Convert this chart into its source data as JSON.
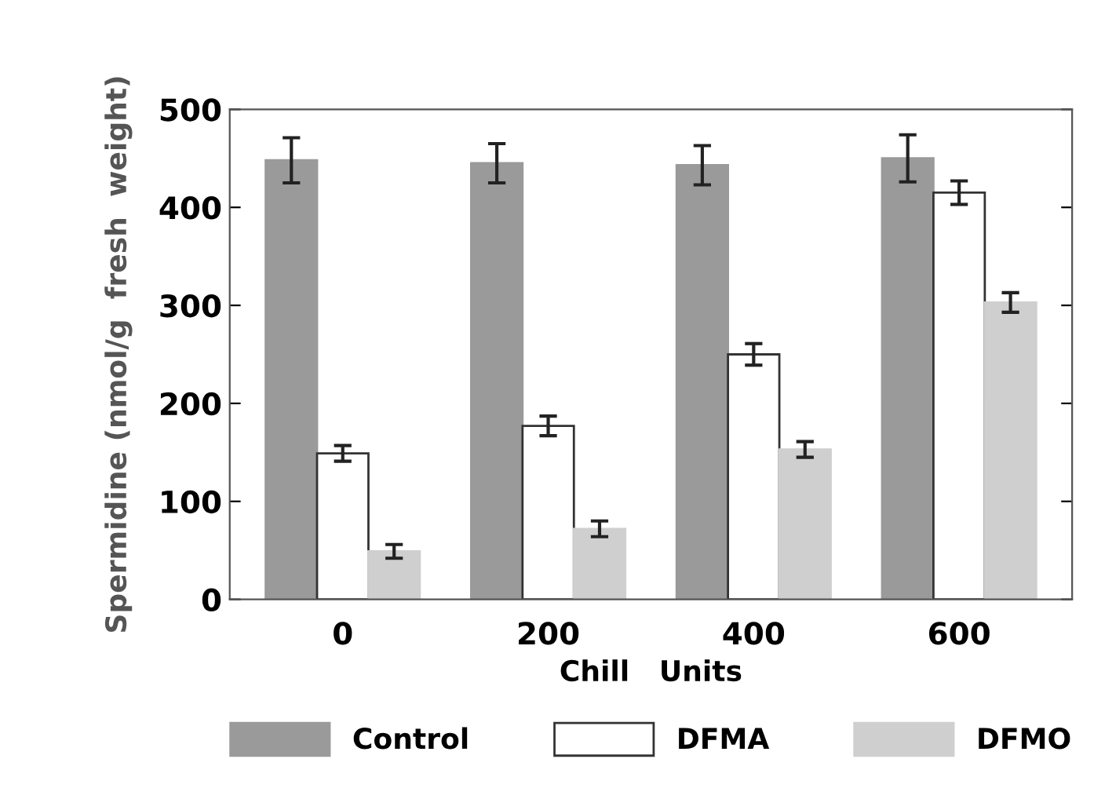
{
  "chart_data": {
    "type": "bar",
    "xlabel": "Chill   Units",
    "ylabel": "Spermidine (nmol/g  fresh  weight)",
    "categories": [
      "0",
      "200",
      "400",
      "600"
    ],
    "series": [
      {
        "name": "Control",
        "color": "#9a9a9a",
        "values": [
          448,
          445,
          443,
          450
        ],
        "errors": [
          23,
          20,
          20,
          24
        ]
      },
      {
        "name": "DFMA",
        "color": "#ffffff",
        "values": [
          149,
          177,
          250,
          415
        ],
        "errors": [
          8,
          10,
          11,
          12
        ]
      },
      {
        "name": "DFMO",
        "color": "#cfcfcf",
        "values": [
          49,
          72,
          153,
          303
        ],
        "errors": [
          7,
          8,
          8,
          10
        ]
      }
    ],
    "ylim": [
      0,
      500
    ],
    "yticks": [
      0,
      100,
      200,
      300,
      400,
      500
    ],
    "grid": false,
    "legend": "bottom"
  }
}
